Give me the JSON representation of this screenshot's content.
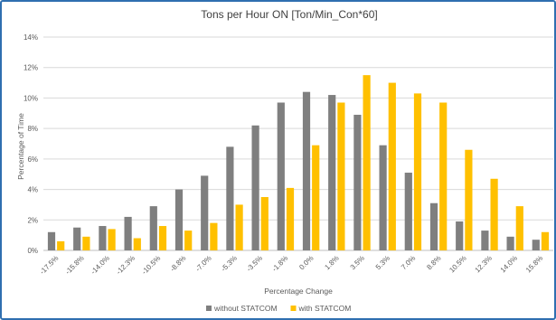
{
  "chart_data": {
    "type": "bar",
    "title": "Tons per Hour ON [Ton/Min_Con*60]",
    "xlabel": "Percentage Change",
    "ylabel": "Percentage of Time",
    "ylim": [
      0,
      14
    ],
    "yticks": [
      0,
      2,
      4,
      6,
      8,
      10,
      12,
      14
    ],
    "ytick_labels": [
      "0%",
      "2%",
      "4%",
      "6%",
      "8%",
      "10%",
      "12%",
      "14%"
    ],
    "grid": true,
    "legend_position": "bottom",
    "categories": [
      "-17.5%",
      "-15.8%",
      "-14.0%",
      "-12.3%",
      "-10.5%",
      "-8.8%",
      "-7.0%",
      "-5.3%",
      "-3.5%",
      "-1.8%",
      "0.0%",
      "1.8%",
      "3.5%",
      "5.3%",
      "7.0%",
      "8.8%",
      "10.5%",
      "12.3%",
      "14.0%",
      "15.8%"
    ],
    "series": [
      {
        "name": "without STATCOM",
        "color": "#7f7f7f",
        "values": [
          1.2,
          1.5,
          1.6,
          2.2,
          2.9,
          4.0,
          4.9,
          6.8,
          8.2,
          9.7,
          10.4,
          10.2,
          8.9,
          6.9,
          5.1,
          3.1,
          1.9,
          1.3,
          0.9,
          0.7
        ]
      },
      {
        "name": "with STATCOM",
        "color": "#ffc000",
        "values": [
          0.6,
          0.9,
          1.4,
          0.8,
          1.6,
          1.3,
          1.8,
          3.0,
          3.5,
          4.1,
          6.9,
          9.7,
          11.5,
          11.0,
          10.3,
          9.7,
          6.6,
          4.7,
          2.9,
          1.2
        ]
      }
    ]
  }
}
